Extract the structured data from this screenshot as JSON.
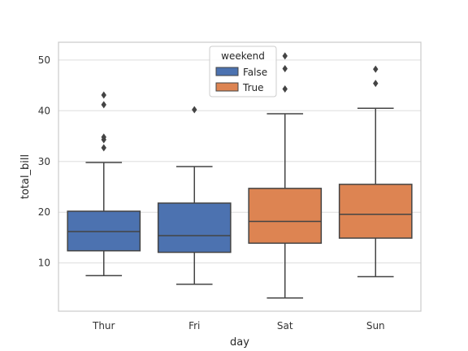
{
  "chart_data": {
    "type": "box",
    "xlabel": "day",
    "ylabel": "total_bill",
    "categories": [
      "Thur",
      "Fri",
      "Sat",
      "Sun"
    ],
    "ylim": [
      0.5,
      53.5
    ],
    "yticks": [
      10,
      20,
      30,
      40,
      50
    ],
    "grid": true,
    "legend": {
      "title": "weekend",
      "placement": "top-center",
      "entries": [
        {
          "label": "False",
          "color": "#4c72b0"
        },
        {
          "label": "True",
          "color": "#dd8452"
        }
      ]
    },
    "boxes": [
      {
        "category": "Thur",
        "weekend": "False",
        "color": "#4c72b0",
        "whisker_low": 7.5,
        "q1": 12.4,
        "median": 16.2,
        "q3": 20.2,
        "whisker_high": 29.8,
        "outliers": [
          32.7,
          34.3,
          34.8,
          41.2,
          43.1
        ]
      },
      {
        "category": "Fri",
        "weekend": "False",
        "color": "#4c72b0",
        "whisker_low": 5.8,
        "q1": 12.1,
        "median": 15.4,
        "q3": 21.8,
        "whisker_high": 29.0,
        "outliers": [
          40.2
        ]
      },
      {
        "category": "Sat",
        "weekend": "True",
        "color": "#dd8452",
        "whisker_low": 3.1,
        "q1": 13.9,
        "median": 18.2,
        "q3": 24.7,
        "whisker_high": 39.4,
        "outliers": [
          44.3,
          48.3,
          50.8
        ]
      },
      {
        "category": "Sun",
        "weekend": "True",
        "color": "#dd8452",
        "whisker_low": 7.3,
        "q1": 14.9,
        "median": 19.6,
        "q3": 25.5,
        "whisker_high": 40.5,
        "outliers": [
          45.4,
          48.2
        ]
      }
    ]
  }
}
